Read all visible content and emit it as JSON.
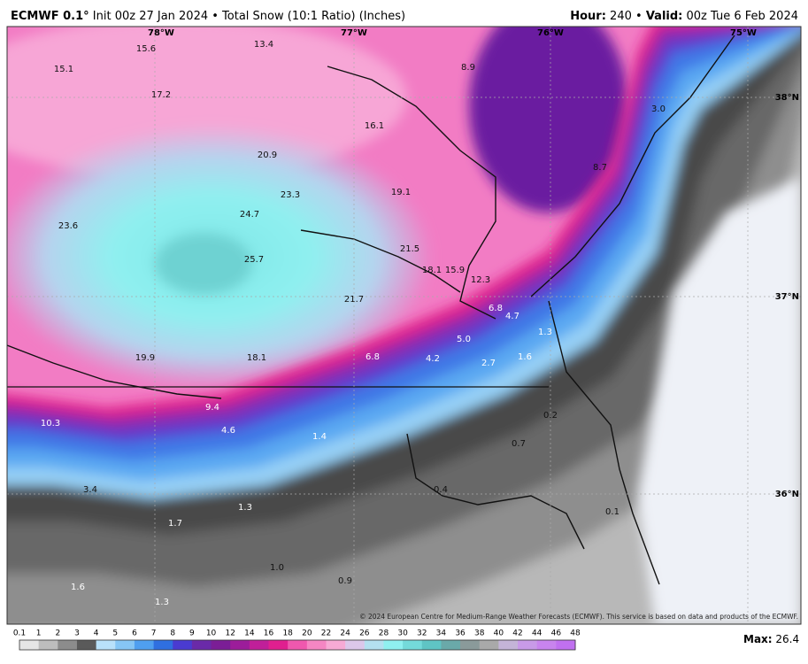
{
  "header": {
    "model": "ECMWF 0.1°",
    "description": "Init 00z 27 Jan 2024 • Total Snow (10:1 Ratio) (Inches)",
    "valid": [
      "Hour:",
      "240",
      "•",
      "Valid:",
      "00z Tue 6 Feb 2024"
    ]
  },
  "map": {
    "longitude_labels": [
      "78°W",
      "77°W",
      "76°W",
      "75°W"
    ],
    "latitude_labels": [
      "38°N",
      "37°N",
      "36°N"
    ],
    "point_values": [
      "15.6",
      "13.4",
      "15.1",
      "8.9",
      "17.2",
      "16.1",
      "3.0",
      "20.9",
      "8.7",
      "23.3",
      "19.1",
      "24.7",
      "23.6",
      "21.5",
      "25.7",
      "18.1",
      "15.9",
      "12.3",
      "21.7",
      "6.8",
      "4.7",
      "1.3",
      "5.0",
      "19.9",
      "18.1",
      "6.8",
      "4.2",
      "2.7",
      "1.6",
      "9.4",
      "0.2",
      "10.3",
      "4.6",
      "1.4",
      "0.7",
      "3.4",
      "0.4",
      "1.3",
      "0.1",
      "1.7",
      "1.0",
      "0.9",
      "1.6",
      "1.3"
    ],
    "copyright": "© 2024 European Centre for Medium-Range Weather Forecasts (ECMWF). This service is based on data and products of the ECMWF."
  },
  "legend": {
    "levels": [
      "0.1",
      "1",
      "2",
      "3",
      "4",
      "5",
      "6",
      "7",
      "8",
      "9",
      "10",
      "12",
      "14",
      "16",
      "18",
      "20",
      "22",
      "24",
      "26",
      "28",
      "30",
      "32",
      "34",
      "36",
      "38",
      "40",
      "42",
      "44",
      "46",
      "48"
    ],
    "max_label": "Max:",
    "max_value": "26.4"
  }
}
